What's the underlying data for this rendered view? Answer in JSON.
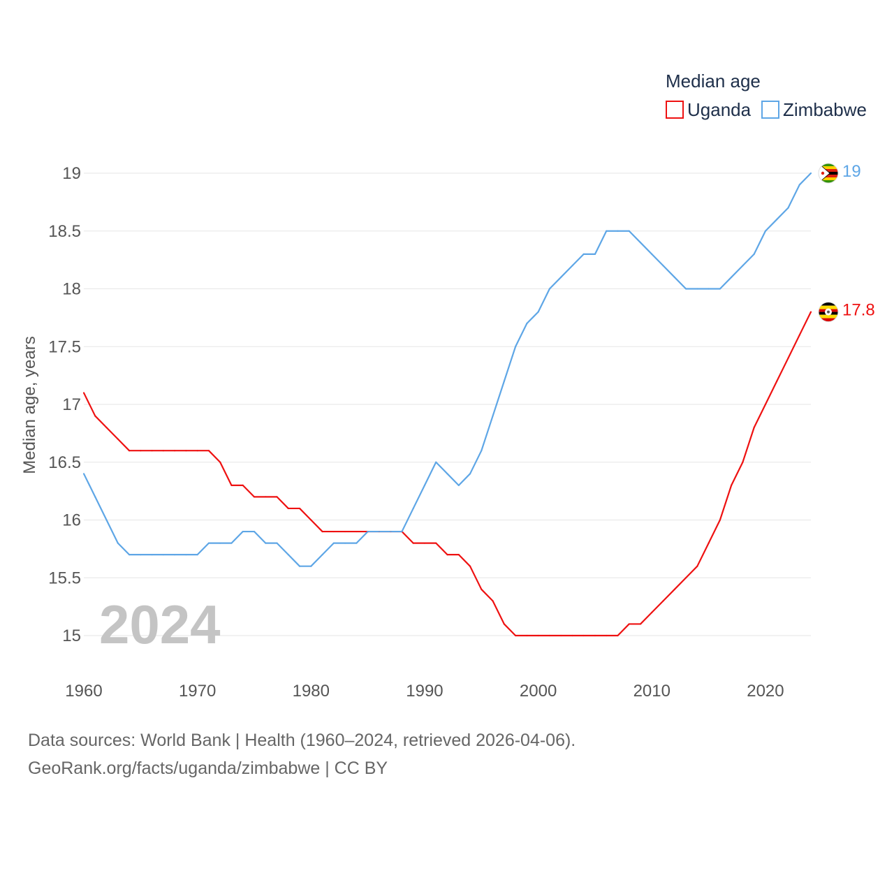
{
  "chart_data": {
    "type": "line",
    "title": "",
    "xlabel": "",
    "ylabel": "Median age, years",
    "xlim": [
      1960,
      2024
    ],
    "ylim": [
      14.8,
      19.1
    ],
    "yticks": [
      15,
      15.5,
      16,
      16.5,
      17,
      17.5,
      18,
      18.5,
      19
    ],
    "ytick_labels": [
      "15",
      "15.5",
      "16",
      "16.5",
      "17",
      "17.5",
      "18",
      "18.5",
      "19"
    ],
    "xticks": [
      1960,
      1970,
      1980,
      1990,
      2000,
      2010,
      2020
    ],
    "xtick_labels": [
      "1960",
      "1970",
      "1980",
      "1990",
      "2000",
      "2010",
      "2020"
    ],
    "grid": true,
    "legend": {
      "title": "Median age",
      "position": "top-right"
    },
    "year_label": "2024",
    "x": [
      1960,
      1961,
      1962,
      1963,
      1964,
      1965,
      1966,
      1967,
      1968,
      1969,
      1970,
      1971,
      1972,
      1973,
      1974,
      1975,
      1976,
      1977,
      1978,
      1979,
      1980,
      1981,
      1982,
      1983,
      1984,
      1985,
      1986,
      1987,
      1988,
      1989,
      1990,
      1991,
      1992,
      1993,
      1994,
      1995,
      1996,
      1997,
      1998,
      1999,
      2000,
      2001,
      2002,
      2003,
      2004,
      2005,
      2006,
      2007,
      2008,
      2009,
      2010,
      2011,
      2012,
      2013,
      2014,
      2015,
      2016,
      2017,
      2018,
      2019,
      2020,
      2021,
      2022,
      2023,
      2024
    ],
    "series": [
      {
        "name": "Uganda",
        "color": "#ee1111",
        "end_label": "17.8",
        "flag": "uganda-flag-icon",
        "values": [
          17.1,
          16.9,
          16.8,
          16.7,
          16.6,
          16.6,
          16.6,
          16.6,
          16.6,
          16.6,
          16.6,
          16.6,
          16.5,
          16.3,
          16.3,
          16.2,
          16.2,
          16.2,
          16.1,
          16.1,
          16.0,
          15.9,
          15.9,
          15.9,
          15.9,
          15.9,
          15.9,
          15.9,
          15.9,
          15.8,
          15.8,
          15.8,
          15.7,
          15.7,
          15.6,
          15.4,
          15.3,
          15.1,
          15.0,
          15.0,
          15.0,
          15.0,
          15.0,
          15.0,
          15.0,
          15.0,
          15.0,
          15.0,
          15.1,
          15.1,
          15.2,
          15.3,
          15.4,
          15.5,
          15.6,
          15.8,
          16.0,
          16.3,
          16.5,
          16.8,
          17.0,
          17.2,
          17.4,
          17.6,
          17.8
        ]
      },
      {
        "name": "Zimbabwe",
        "color": "#5ea6e6",
        "end_label": "19",
        "flag": "zimbabwe-flag-icon",
        "values": [
          16.4,
          16.2,
          16.0,
          15.8,
          15.7,
          15.7,
          15.7,
          15.7,
          15.7,
          15.7,
          15.7,
          15.8,
          15.8,
          15.8,
          15.9,
          15.9,
          15.8,
          15.8,
          15.7,
          15.6,
          15.6,
          15.7,
          15.8,
          15.8,
          15.8,
          15.9,
          15.9,
          15.9,
          15.9,
          16.1,
          16.3,
          16.5,
          16.4,
          16.3,
          16.4,
          16.6,
          16.9,
          17.2,
          17.5,
          17.7,
          17.8,
          18.0,
          18.1,
          18.2,
          18.3,
          18.3,
          18.5,
          18.5,
          18.5,
          18.4,
          18.3,
          18.2,
          18.1,
          18.0,
          18.0,
          18.0,
          18.0,
          18.1,
          18.2,
          18.3,
          18.5,
          18.6,
          18.7,
          18.9,
          19.0
        ]
      }
    ]
  },
  "footer": {
    "line1": "Data sources: World Bank | Health (1960–2024, retrieved 2026-04-06).",
    "line2": "GeoRank.org/facts/uganda/zimbabwe | CC BY"
  }
}
